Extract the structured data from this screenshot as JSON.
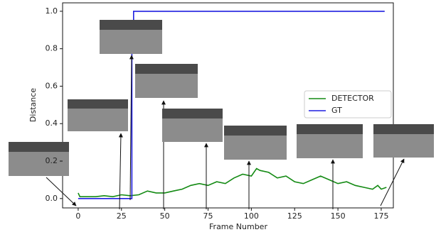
{
  "chart_data": {
    "type": "line",
    "xlabel": "Frame Number",
    "ylabel": "Distance",
    "xlim": [
      -9,
      182
    ],
    "ylim": [
      -0.05,
      1.045
    ],
    "xticks": [
      0,
      25,
      50,
      75,
      100,
      125,
      150,
      175
    ],
    "yticks": [
      {
        "value": 0,
        "label": "0.0"
      },
      {
        "value": 0.2,
        "label": "0.2"
      },
      {
        "value": 0.4,
        "label": "0.4"
      },
      {
        "value": 0.6,
        "label": "0.6"
      },
      {
        "value": 0.8,
        "label": "0.8"
      },
      {
        "value": 1,
        "label": "1.0"
      }
    ],
    "legend": "center right",
    "series": [
      {
        "name": "DETECTOR",
        "color": "#138a13",
        "x": [
          0,
          1,
          5,
          10,
          15,
          20,
          25,
          30,
          35,
          40,
          45,
          50,
          55,
          60,
          65,
          70,
          75,
          80,
          85,
          90,
          95,
          100,
          103,
          105,
          110,
          115,
          120,
          125,
          130,
          135,
          140,
          145,
          150,
          155,
          160,
          165,
          170,
          173,
          175,
          178
        ],
        "values": [
          0.03,
          0.01,
          0.01,
          0.01,
          0.015,
          0.01,
          0.02,
          0.015,
          0.02,
          0.04,
          0.03,
          0.03,
          0.04,
          0.05,
          0.07,
          0.08,
          0.07,
          0.09,
          0.08,
          0.11,
          0.13,
          0.12,
          0.16,
          0.15,
          0.14,
          0.11,
          0.12,
          0.09,
          0.08,
          0.1,
          0.12,
          0.1,
          0.08,
          0.09,
          0.07,
          0.06,
          0.05,
          0.07,
          0.05,
          0.06
        ]
      },
      {
        "name": "GT",
        "color": "#1f1fe0",
        "x": [
          0,
          31,
          31,
          32,
          32,
          177
        ],
        "values": [
          0,
          0,
          0.95,
          0.95,
          1,
          1
        ]
      }
    ]
  }
}
